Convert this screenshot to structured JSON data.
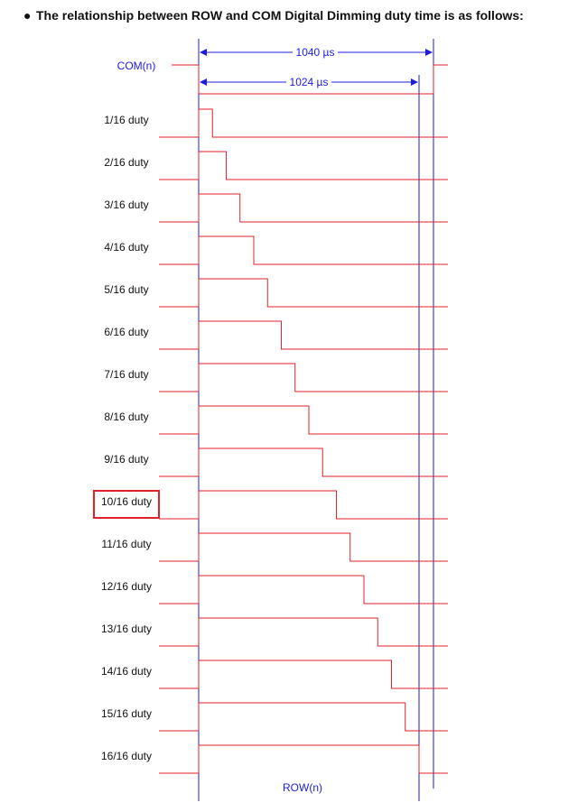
{
  "heading": {
    "bullet": "●",
    "text": "The relationship between ROW and COM Digital Dimming duty time is as follows:"
  },
  "com_label": "COM(n)",
  "row_label": "ROW(n)",
  "dimensions": {
    "outer": "1040 µs",
    "inner": "1024 µs"
  },
  "duty_rows": [
    {
      "label": "1/16 duty",
      "steps": 1
    },
    {
      "label": "2/16 duty",
      "steps": 2
    },
    {
      "label": "3/16 duty",
      "steps": 3
    },
    {
      "label": "4/16 duty",
      "steps": 4
    },
    {
      "label": "5/16 duty",
      "steps": 5
    },
    {
      "label": "6/16 duty",
      "steps": 6
    },
    {
      "label": "7/16 duty",
      "steps": 7
    },
    {
      "label": "8/16 duty",
      "steps": 8
    },
    {
      "label": "9/16 duty",
      "steps": 9
    },
    {
      "label": "10/16 duty",
      "steps": 10,
      "highlighted": true
    },
    {
      "label": "11/16 duty",
      "steps": 11
    },
    {
      "label": "12/16 duty",
      "steps": 12
    },
    {
      "label": "13/16 duty",
      "steps": 13
    },
    {
      "label": "14/16 duty",
      "steps": 14
    },
    {
      "label": "15/16 duty",
      "steps": 15
    },
    {
      "label": "16/16 duty",
      "steps": 16
    }
  ],
  "colors": {
    "signal": "#e0202a",
    "guide": "#1c1ce0",
    "highlight": "#e0202a",
    "text": "#111111"
  }
}
